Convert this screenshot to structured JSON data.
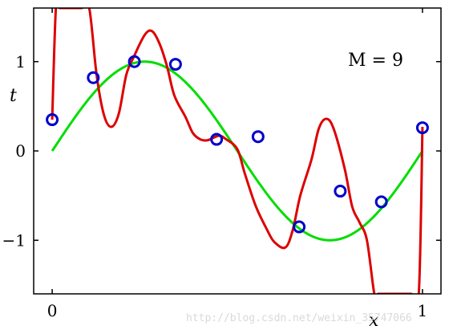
{
  "chart_data": {
    "type": "line",
    "title": "",
    "xlabel": "x",
    "ylabel": "t",
    "xlim": [
      -0.05,
      1.05
    ],
    "ylim": [
      -1.6,
      1.6
    ],
    "x_ticks": [
      0,
      1
    ],
    "x_tick_labels": [
      "0",
      "1"
    ],
    "y_ticks": [
      -1,
      0,
      1
    ],
    "y_tick_labels": [
      "−1",
      "0",
      "1"
    ],
    "grid": false,
    "annotation": "M = 9",
    "colors": {
      "true_curve": "#00dd00",
      "fit_curve": "#dd0000",
      "data_points": "#0000cc",
      "axes": "#000000"
    },
    "true_curve": {
      "function": "sin(2*pi*x)",
      "x_range": [
        0,
        1
      ]
    },
    "fit_curve": {
      "x": [
        0.0,
        0.01,
        0.02,
        0.05,
        0.08,
        0.1,
        0.12,
        0.14,
        0.16,
        0.18,
        0.2,
        0.22,
        0.25,
        0.27,
        0.29,
        0.31,
        0.33,
        0.36,
        0.38,
        0.4,
        0.42,
        0.45,
        0.47,
        0.5,
        0.52,
        0.55,
        0.58,
        0.6,
        0.63,
        0.65,
        0.67,
        0.7,
        0.72,
        0.74,
        0.76,
        0.79,
        0.81,
        0.83,
        0.85,
        0.87,
        0.88,
        0.9,
        0.92,
        0.94,
        0.97,
        0.99,
        1.0
      ],
      "y": [
        0.35,
        1.6,
        1.6,
        1.6,
        1.6,
        1.6,
        0.85,
        0.4,
        0.27,
        0.42,
        0.85,
        1.05,
        1.3,
        1.34,
        1.2,
        0.95,
        0.62,
        0.38,
        0.2,
        0.13,
        0.12,
        0.17,
        0.13,
        0.02,
        -0.25,
        -0.62,
        -0.88,
        -1.02,
        -1.08,
        -0.88,
        -0.5,
        -0.1,
        0.25,
        0.36,
        0.25,
        -0.2,
        -0.62,
        -0.8,
        -1.0,
        -1.6,
        -1.6,
        -1.6,
        -1.6,
        -1.6,
        -1.6,
        -1.6,
        0.27
      ]
    },
    "data_points": {
      "x": [
        0.0,
        0.111,
        0.222,
        0.333,
        0.444,
        0.556,
        0.667,
        0.778,
        0.889,
        1.0
      ],
      "y": [
        0.35,
        0.82,
        1.0,
        0.97,
        0.13,
        0.16,
        -0.85,
        -0.45,
        -0.57,
        0.26
      ]
    },
    "watermark": "http://blog.csdn.net/weixin_35747066"
  }
}
